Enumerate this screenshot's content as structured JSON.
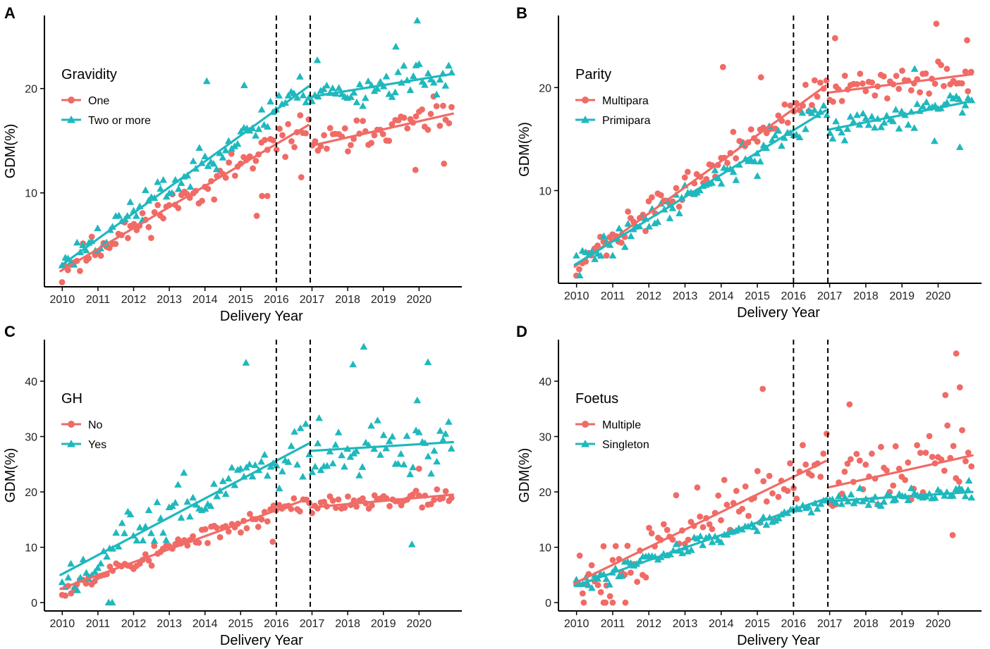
{
  "figure": {
    "colors": {
      "series_a": "#f06b66",
      "series_b": "#1fb8bd",
      "axis": "#000000",
      "vline": "#000000"
    }
  },
  "chart_data": [
    {
      "type": "scatter",
      "panel_label": "A",
      "title": "",
      "xlabel": "Delivery Year",
      "ylabel": "GDM(%)",
      "legend_title": "Gravidity",
      "legend_position": "top-left",
      "x_ticks": [
        "2010",
        "2011",
        "2012",
        "2013",
        "2014",
        "2015",
        "2016",
        "2017",
        "2018",
        "2019",
        "2020"
      ],
      "y_ticks": [
        10,
        20
      ],
      "xlim": [
        2009.5,
        2021.2
      ],
      "ylim": [
        1.0,
        27.0
      ],
      "vlines": [
        2016.0,
        2016.95
      ],
      "series": [
        {
          "name": "One",
          "marker": "circle",
          "color": "#f06b66",
          "trend": [
            [
              [
                2009.95,
                2.5
              ],
              [
                2016.9,
                16.5
              ]
            ],
            [
              [
                2016.95,
                14.5
              ],
              [
                2020.95,
                17.6
              ]
            ]
          ],
          "points_seed": 11,
          "noise": 1.6,
          "outliers": [
            [
              2015.45,
              7.8
            ],
            [
              2015.6,
              9.7
            ],
            [
              2015.75,
              9.7
            ],
            [
              2016.7,
              11.5
            ],
            [
              2019.9,
              12.2
            ],
            [
              2020.7,
              12.8
            ]
          ]
        },
        {
          "name": "Two or more",
          "marker": "triangle",
          "color": "#1fb8bd",
          "trend": [
            [
              [
                2009.95,
                3.0
              ],
              [
                2016.9,
                20.2
              ]
            ],
            [
              [
                2016.95,
                19.2
              ],
              [
                2020.95,
                21.4
              ]
            ]
          ],
          "points_seed": 23,
          "noise": 1.7,
          "outliers": [
            [
              2014.05,
              20.7
            ],
            [
              2015.1,
              20.3
            ],
            [
              2017.15,
              22.7
            ],
            [
              2019.35,
              24.0
            ],
            [
              2019.95,
              26.5
            ]
          ]
        }
      ]
    },
    {
      "type": "scatter",
      "panel_label": "B",
      "title": "",
      "xlabel": "Delivery Year",
      "ylabel": "GDM(%)",
      "legend_title": "Parity",
      "legend_position": "top-left",
      "x_ticks": [
        "2010",
        "2011",
        "2012",
        "2013",
        "2014",
        "2015",
        "2016",
        "2017",
        "2018",
        "2019",
        "2020"
      ],
      "y_ticks": [
        10,
        20
      ],
      "xlim": [
        2009.5,
        2021.2
      ],
      "ylim": [
        1.0,
        27.0
      ],
      "vlines": [
        2016.0,
        2016.95
      ],
      "series": [
        {
          "name": "Multipara",
          "marker": "circle",
          "color": "#f06b66",
          "trend": [
            [
              [
                2009.95,
                2.6
              ],
              [
                2016.9,
                20.2
              ]
            ],
            [
              [
                2016.95,
                19.5
              ],
              [
                2020.95,
                21.3
              ]
            ]
          ],
          "points_seed": 37,
          "noise": 1.6,
          "outliers": [
            [
              2014.05,
              22.0
            ],
            [
              2015.1,
              21.0
            ],
            [
              2017.15,
              24.8
            ],
            [
              2019.95,
              26.2
            ],
            [
              2020.8,
              24.6
            ]
          ]
        },
        {
          "name": "Primipara",
          "marker": "triangle",
          "color": "#1fb8bd",
          "trend": [
            [
              [
                2009.95,
                2.8
              ],
              [
                2016.9,
                17.8
              ]
            ],
            [
              [
                2016.95,
                15.9
              ],
              [
                2020.95,
                18.7
              ]
            ]
          ],
          "points_seed": 41,
          "noise": 1.5,
          "outliers": [
            [
              2015.0,
              11.4
            ],
            [
              2019.9,
              14.8
            ],
            [
              2020.6,
              14.2
            ],
            [
              2019.35,
              21.8
            ]
          ]
        }
      ]
    },
    {
      "type": "scatter",
      "panel_label": "C",
      "title": "",
      "xlabel": "Delivery Year",
      "ylabel": "GDM(%)",
      "legend_title": "GH",
      "legend_position": "top-left",
      "x_ticks": [
        "2010",
        "2011",
        "2012",
        "2013",
        "2014",
        "2015",
        "2016",
        "2017",
        "2018",
        "2019",
        "2020"
      ],
      "y_ticks": [
        0,
        10,
        20,
        30,
        40
      ],
      "xlim": [
        2009.5,
        2021.2
      ],
      "ylim": [
        -1.5,
        47.5
      ],
      "vlines": [
        2016.0,
        2016.95
      ],
      "series": [
        {
          "name": "No",
          "marker": "circle",
          "color": "#f06b66",
          "trend": [
            [
              [
                2009.95,
                2.5
              ],
              [
                2016.9,
                18.8
              ]
            ],
            [
              [
                2016.95,
                17.2
              ],
              [
                2020.95,
                19.5
              ]
            ]
          ],
          "points_seed": 53,
          "noise": 2.0,
          "outliers": [
            [
              2020.0,
              24.2
            ],
            [
              2015.9,
              11.0
            ]
          ]
        },
        {
          "name": "Yes",
          "marker": "triangle",
          "color": "#1fb8bd",
          "trend": [
            [
              [
                2009.95,
                5.0
              ],
              [
                2016.9,
                28.7
              ]
            ],
            [
              [
                2016.95,
                27.4
              ],
              [
                2020.95,
                29.0
              ]
            ]
          ],
          "points_seed": 67,
          "noise": 5.5,
          "outliers": [
            [
              2011.3,
              0.0
            ],
            [
              2011.4,
              0.0
            ],
            [
              2015.15,
              43.3
            ],
            [
              2017.2,
              33.3
            ],
            [
              2018.15,
              43.0
            ],
            [
              2018.45,
              46.2
            ],
            [
              2019.95,
              36.5
            ],
            [
              2020.25,
              43.4
            ],
            [
              2019.8,
              10.5
            ]
          ]
        }
      ]
    },
    {
      "type": "scatter",
      "panel_label": "D",
      "title": "",
      "xlabel": "Delivery Year",
      "ylabel": "GDM(%)",
      "legend_title": "Foetus",
      "legend_position": "top-left",
      "x_ticks": [
        "2010",
        "2011",
        "2012",
        "2013",
        "2014",
        "2015",
        "2016",
        "2017",
        "2018",
        "2019",
        "2020"
      ],
      "y_ticks": [
        0,
        10,
        20,
        30,
        40
      ],
      "xlim": [
        2009.5,
        2021.2
      ],
      "ylim": [
        -1.5,
        47.5
      ],
      "vlines": [
        2016.0,
        2016.95
      ],
      "series": [
        {
          "name": "Multiple",
          "marker": "circle",
          "color": "#f06b66",
          "trend": [
            [
              [
                2009.95,
                3.5
              ],
              [
                2016.9,
                25.6
              ]
            ],
            [
              [
                2016.95,
                20.8
              ],
              [
                2020.95,
                26.6
              ]
            ]
          ],
          "points_seed": 71,
          "noise": 6.0,
          "outliers": [
            [
              2010.2,
              0.0
            ],
            [
              2010.75,
              0.0
            ],
            [
              2010.8,
              0.0
            ],
            [
              2011.0,
              0.0
            ],
            [
              2011.35,
              0.0
            ],
            [
              2015.15,
              38.6
            ],
            [
              2017.55,
              35.8
            ],
            [
              2020.6,
              38.9
            ],
            [
              2020.5,
              45.0
            ],
            [
              2020.2,
              37.5
            ],
            [
              2020.4,
              12.2
            ]
          ]
        },
        {
          "name": "Singleton",
          "marker": "triangle",
          "color": "#1fb8bd",
          "trend": [
            [
              [
                2009.95,
                3.0
              ],
              [
                2016.9,
                18.8
              ]
            ],
            [
              [
                2016.95,
                18.3
              ],
              [
                2020.95,
                20.0
              ]
            ]
          ],
          "points_seed": 83,
          "noise": 1.6,
          "outliers": [
            [
              2020.85,
              22.0
            ]
          ]
        }
      ]
    }
  ]
}
